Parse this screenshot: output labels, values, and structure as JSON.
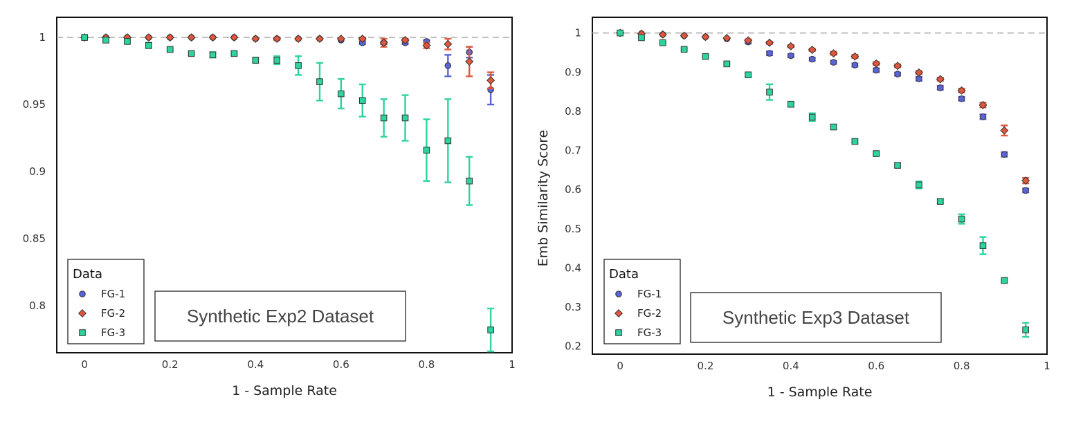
{
  "chart_data": [
    {
      "type": "scatter",
      "title": "",
      "annotation": "Synthetic Exp2 Dataset",
      "xlabel": "1 - Sample Rate",
      "ylabel": "",
      "xlim": [
        -0.065,
        1.0
      ],
      "ylim": [
        0.765,
        1.015
      ],
      "xticks": [
        0,
        0.2,
        0.4,
        0.6,
        0.8,
        1
      ],
      "xtick_labels": [
        "0",
        "0.2",
        "0.4",
        "0.6",
        "0.8",
        "1"
      ],
      "yticks": [
        0.8,
        0.85,
        0.9,
        0.95,
        1
      ],
      "ytick_labels": [
        "0.8",
        "0.85",
        "0.9",
        "0.95",
        "1"
      ],
      "reference_line": 1,
      "legend": {
        "title": "Data",
        "location": "bottom-left"
      },
      "x": [
        0,
        0.05,
        0.1,
        0.15,
        0.2,
        0.25,
        0.3,
        0.35,
        0.4,
        0.45,
        0.5,
        0.55,
        0.6,
        0.65,
        0.7,
        0.75,
        0.8,
        0.85,
        0.9,
        0.95
      ],
      "series": [
        {
          "name": "FG-1",
          "color": "#5b63d6",
          "marker": "circle",
          "values": [
            1,
            1,
            1,
            1,
            1,
            1,
            1,
            1,
            0.999,
            0.999,
            0.999,
            0.999,
            0.998,
            0.996,
            0.996,
            0.996,
            0.997,
            0.979,
            0.989,
            0.961
          ],
          "errors": [
            0,
            0,
            0,
            0,
            0,
            0,
            0,
            0,
            0,
            0,
            0,
            0,
            0,
            0.001,
            0.001,
            0.001,
            0.001,
            0.008,
            0.004,
            0.011
          ]
        },
        {
          "name": "FG-2",
          "color": "#e0573e",
          "marker": "diamond",
          "values": [
            1,
            1,
            1,
            1,
            1,
            1,
            1,
            1,
            0.999,
            0.999,
            0.999,
            0.999,
            0.999,
            0.999,
            0.996,
            0.998,
            0.994,
            0.995,
            0.982,
            0.968
          ],
          "errors": [
            0,
            0,
            0,
            0,
            0,
            0,
            0,
            0,
            0,
            0.001,
            0,
            0,
            0,
            0.001,
            0.003,
            0.001,
            0.002,
            0.004,
            0.011,
            0.006
          ]
        },
        {
          "name": "FG-3",
          "color": "#2ed3a0",
          "marker": "square",
          "values": [
            1,
            0.998,
            0.997,
            0.994,
            0.991,
            0.988,
            0.987,
            0.988,
            0.983,
            0.983,
            0.979,
            0.967,
            0.958,
            0.953,
            0.94,
            0.94,
            0.916,
            0.923,
            0.893,
            0.782
          ],
          "errors": [
            0,
            0.001,
            0.001,
            0.002,
            0.001,
            0.001,
            0.002,
            0.001,
            0.002,
            0.003,
            0.007,
            0.014,
            0.011,
            0.012,
            0.014,
            0.017,
            0.023,
            0.031,
            0.018,
            0.016
          ]
        }
      ]
    },
    {
      "type": "scatter",
      "title": "",
      "annotation": "Synthetic Exp3 Dataset",
      "xlabel": "1 - Sample Rate",
      "ylabel": "Emb Similarity Score",
      "xlim": [
        -0.065,
        1.0
      ],
      "ylim": [
        0.18,
        1.04
      ],
      "xticks": [
        0,
        0.2,
        0.4,
        0.6,
        0.8,
        1
      ],
      "xtick_labels": [
        "0",
        "0.2",
        "0.4",
        "0.6",
        "0.8",
        "1"
      ],
      "yticks": [
        0.2,
        0.3,
        0.4,
        0.5,
        0.6,
        0.7,
        0.8,
        0.9,
        1
      ],
      "ytick_labels": [
        "0.2",
        "0.3",
        "0.4",
        "0.5",
        "0.6",
        "0.7",
        "0.8",
        "0.9",
        "1"
      ],
      "reference_line": 1,
      "legend": {
        "title": "Data",
        "location": "bottom-left"
      },
      "x": [
        0,
        0.05,
        0.1,
        0.15,
        0.2,
        0.25,
        0.3,
        0.35,
        0.4,
        0.45,
        0.5,
        0.55,
        0.6,
        0.65,
        0.7,
        0.75,
        0.8,
        0.85,
        0.9,
        0.95
      ],
      "series": [
        {
          "name": "FG-1",
          "color": "#5b63d6",
          "marker": "circle",
          "values": [
            1,
            0.998,
            0.996,
            0.993,
            0.99,
            0.985,
            0.977,
            0.948,
            0.942,
            0.933,
            0.925,
            0.918,
            0.905,
            0.895,
            0.883,
            0.86,
            0.832,
            0.786,
            0.69,
            0.598
          ],
          "errors": [
            0,
            0,
            0,
            0,
            0,
            0,
            0.004,
            0.005,
            0.004,
            0.004,
            0.004,
            0.004,
            0.005,
            0.004,
            0.005,
            0.005,
            0.005,
            0.006,
            0.006,
            0.005
          ]
        },
        {
          "name": "FG-2",
          "color": "#e0573e",
          "marker": "diamond",
          "values": [
            1,
            0.998,
            0.996,
            0.993,
            0.99,
            0.987,
            0.981,
            0.975,
            0.966,
            0.957,
            0.948,
            0.94,
            0.922,
            0.916,
            0.899,
            0.882,
            0.853,
            0.816,
            0.751,
            0.623
          ],
          "errors": [
            0,
            0,
            0,
            0,
            0,
            0,
            0.003,
            0.003,
            0.003,
            0.003,
            0.004,
            0.004,
            0.004,
            0.004,
            0.004,
            0.004,
            0.005,
            0.006,
            0.013,
            0.007
          ]
        },
        {
          "name": "FG-3",
          "color": "#2ed3a0",
          "marker": "square",
          "values": [
            1,
            0.988,
            0.975,
            0.958,
            0.94,
            0.921,
            0.893,
            0.849,
            0.818,
            0.785,
            0.76,
            0.723,
            0.692,
            0.662,
            0.612,
            0.57,
            0.525,
            0.457,
            0.368,
            0.242
          ],
          "errors": [
            0,
            0.002,
            0.002,
            0.003,
            0.003,
            0.003,
            0.004,
            0.02,
            0.006,
            0.01,
            0.005,
            0.005,
            0.005,
            0.005,
            0.009,
            0.005,
            0.012,
            0.022,
            0.005,
            0.018
          ]
        }
      ]
    }
  ]
}
